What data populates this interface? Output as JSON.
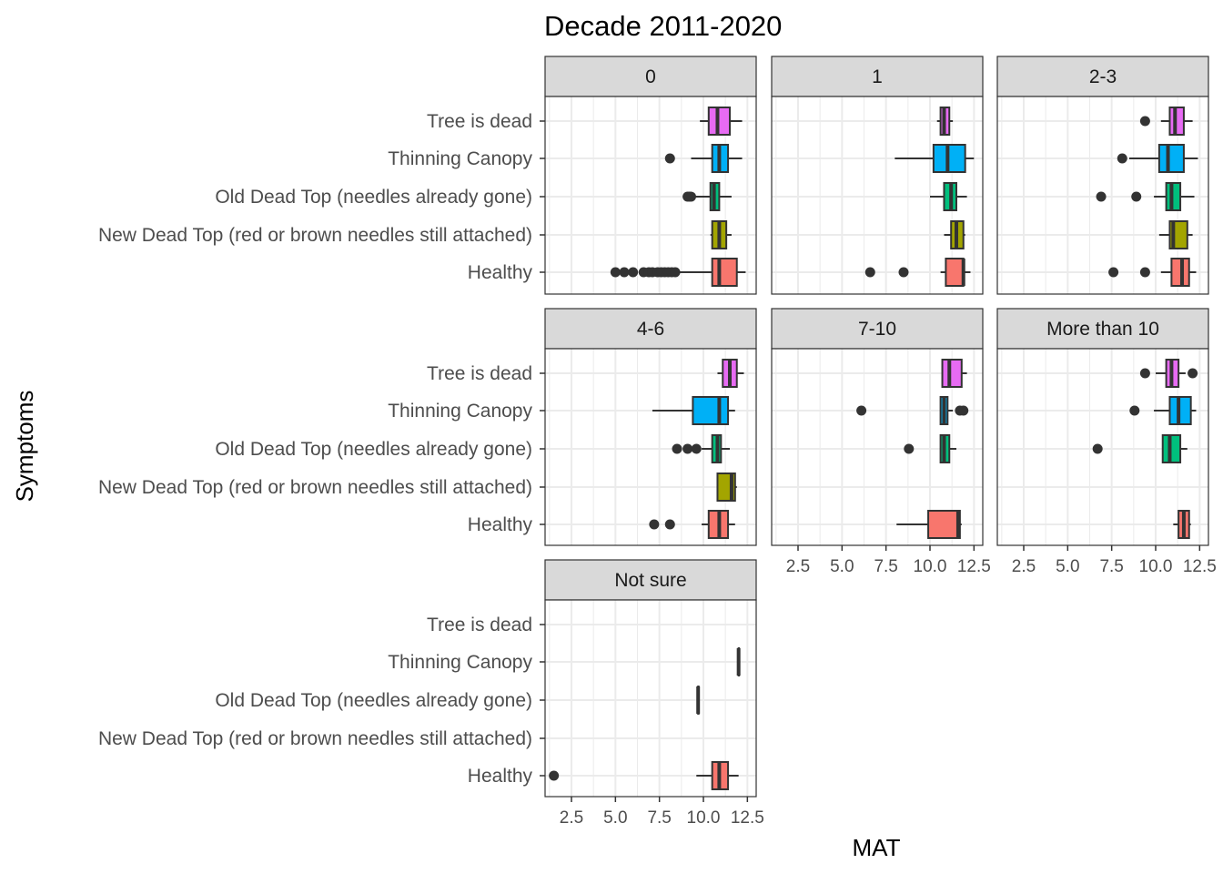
{
  "chart_data": {
    "type": "boxplot",
    "title": "Decade 2011-2020",
    "xlabel": "MAT",
    "ylabel": "Symptoms",
    "xlim": [
      1.0,
      13.0
    ],
    "x_ticks": [
      2.5,
      5.0,
      7.5,
      10.0,
      12.5
    ],
    "x_tick_labels": [
      "2.5",
      "5.0",
      "7.5",
      "10.0",
      "12.5"
    ],
    "categories": [
      "Tree is dead",
      "Thinning Canopy",
      "Old Dead Top (needles already gone)",
      "New Dead Top (red or brown needles still attached)",
      "Healthy"
    ],
    "category_colors": {
      "Tree is dead": "#E76BF3",
      "Thinning Canopy": "#00B0F6",
      "Old Dead Top (needles already gone)": "#00BF7D",
      "New Dead Top (red or brown needles still attached)": "#A3A500",
      "Healthy": "#F8766D"
    },
    "grid": true,
    "panels": [
      {
        "label": "0",
        "boxes": [
          {
            "category": "Tree is dead",
            "q1": 10.3,
            "median": 10.8,
            "q3": 11.5,
            "wmin": 9.8,
            "wmax": 12.2,
            "outliers": []
          },
          {
            "category": "Thinning Canopy",
            "q1": 10.5,
            "median": 10.9,
            "q3": 11.4,
            "wmin": 9.3,
            "wmax": 12.2,
            "outliers": [
              8.1
            ]
          },
          {
            "category": "Old Dead Top (needles already gone)",
            "q1": 10.4,
            "median": 10.6,
            "q3": 10.9,
            "wmin": 9.5,
            "wmax": 11.6,
            "outliers": [
              9.1,
              9.2,
              9.3
            ]
          },
          {
            "category": "New Dead Top (red or brown needles still attached)",
            "q1": 10.5,
            "median": 10.9,
            "q3": 11.3,
            "wmin": 10.4,
            "wmax": 11.6,
            "outliers": []
          },
          {
            "category": "Healthy",
            "q1": 10.5,
            "median": 10.9,
            "q3": 11.9,
            "wmin": 8.5,
            "wmax": 12.4,
            "outliers": [
              5.0,
              5.5,
              6.0,
              6.6,
              6.9,
              7.1,
              7.4,
              7.6,
              7.8,
              8.0,
              8.2,
              8.4
            ]
          }
        ]
      },
      {
        "label": "1",
        "boxes": [
          {
            "category": "Tree is dead",
            "q1": 10.6,
            "median": 10.8,
            "q3": 11.1,
            "wmin": 10.4,
            "wmax": 11.3,
            "outliers": []
          },
          {
            "category": "Thinning Canopy",
            "q1": 10.2,
            "median": 11.0,
            "q3": 12.0,
            "wmin": 8.0,
            "wmax": 12.5,
            "outliers": []
          },
          {
            "category": "Old Dead Top (needles already gone)",
            "q1": 10.8,
            "median": 11.2,
            "q3": 11.5,
            "wmin": 10.0,
            "wmax": 12.1,
            "outliers": []
          },
          {
            "category": "New Dead Top (red or brown needles still attached)",
            "q1": 11.2,
            "median": 11.5,
            "q3": 11.9,
            "wmin": 10.8,
            "wmax": 12.0,
            "outliers": []
          },
          {
            "category": "Healthy",
            "q1": 10.9,
            "median": 11.9,
            "q3": 11.9,
            "wmin": 10.6,
            "wmax": 12.3,
            "outliers": [
              6.6,
              8.5
            ]
          }
        ]
      },
      {
        "label": "2-3",
        "boxes": [
          {
            "category": "Tree is dead",
            "q1": 10.8,
            "median": 11.1,
            "q3": 11.6,
            "wmin": 10.3,
            "wmax": 12.1,
            "outliers": [
              9.4
            ]
          },
          {
            "category": "Thinning Canopy",
            "q1": 10.2,
            "median": 10.7,
            "q3": 11.6,
            "wmin": 8.5,
            "wmax": 12.4,
            "outliers": [
              8.1
            ]
          },
          {
            "category": "Old Dead Top (needles already gone)",
            "q1": 10.6,
            "median": 10.9,
            "q3": 11.4,
            "wmin": 9.9,
            "wmax": 12.2,
            "outliers": [
              6.9,
              8.9
            ]
          },
          {
            "category": "New Dead Top (red or brown needles still attached)",
            "q1": 10.8,
            "median": 11.0,
            "q3": 11.8,
            "wmin": 10.2,
            "wmax": 12.1,
            "outliers": []
          },
          {
            "category": "Healthy",
            "q1": 10.9,
            "median": 11.5,
            "q3": 11.9,
            "wmin": 10.3,
            "wmax": 12.3,
            "outliers": [
              7.6,
              9.4
            ]
          }
        ]
      },
      {
        "label": "4-6",
        "boxes": [
          {
            "category": "Tree is dead",
            "q1": 11.1,
            "median": 11.5,
            "q3": 11.9,
            "wmin": 10.8,
            "wmax": 12.3,
            "outliers": []
          },
          {
            "category": "Thinning Canopy",
            "q1": 9.4,
            "median": 10.9,
            "q3": 11.4,
            "wmin": 7.1,
            "wmax": 11.8,
            "outliers": []
          },
          {
            "category": "Old Dead Top (needles already gone)",
            "q1": 10.5,
            "median": 10.8,
            "q3": 11.0,
            "wmin": 9.9,
            "wmax": 11.5,
            "outliers": [
              8.5,
              9.1,
              9.6
            ]
          },
          {
            "category": "New Dead Top (red or brown needles still attached)",
            "q1": 10.8,
            "median": 11.6,
            "q3": 11.8,
            "wmin": 10.8,
            "wmax": 11.9,
            "outliers": []
          },
          {
            "category": "Healthy",
            "q1": 10.3,
            "median": 10.9,
            "q3": 11.4,
            "wmin": 9.9,
            "wmax": 11.8,
            "outliers": [
              7.2,
              8.1
            ]
          }
        ]
      },
      {
        "label": "7-10",
        "boxes": [
          {
            "category": "Tree is dead",
            "q1": 10.7,
            "median": 11.1,
            "q3": 11.8,
            "wmin": 10.7,
            "wmax": 12.1,
            "outliers": []
          },
          {
            "category": "Thinning Canopy",
            "q1": 10.6,
            "median": 10.8,
            "q3": 11.0,
            "wmin": 10.6,
            "wmax": 11.3,
            "outliers": [
              6.1,
              11.7,
              11.9
            ]
          },
          {
            "category": "Old Dead Top (needles already gone)",
            "q1": 10.6,
            "median": 10.8,
            "q3": 11.1,
            "wmin": 10.6,
            "wmax": 11.5,
            "outliers": [
              8.8
            ]
          },
          {
            "category": "Healthy",
            "q1": 9.9,
            "median": 11.6,
            "q3": 11.7,
            "wmin": 8.1,
            "wmax": 11.8,
            "outliers": []
          }
        ]
      },
      {
        "label": "More than 10",
        "boxes": [
          {
            "category": "Tree is dead",
            "q1": 10.6,
            "median": 10.9,
            "q3": 11.3,
            "wmin": 10.0,
            "wmax": 11.7,
            "outliers": [
              9.4,
              12.1
            ]
          },
          {
            "category": "Thinning Canopy",
            "q1": 10.8,
            "median": 11.3,
            "q3": 12.0,
            "wmin": 9.9,
            "wmax": 12.3,
            "outliers": [
              8.8
            ]
          },
          {
            "category": "Old Dead Top (needles already gone)",
            "q1": 10.4,
            "median": 10.8,
            "q3": 11.4,
            "wmin": 10.4,
            "wmax": 11.8,
            "outliers": [
              6.7
            ]
          },
          {
            "category": "Healthy",
            "q1": 11.3,
            "median": 11.6,
            "q3": 11.9,
            "wmin": 11.0,
            "wmax": 12.0,
            "outliers": []
          }
        ]
      },
      {
        "label": "Not sure",
        "boxes": [
          {
            "category": "Thinning Canopy",
            "q1": 12.0,
            "median": 12.0,
            "q3": 12.0,
            "wmin": 12.0,
            "wmax": 12.0,
            "outliers": []
          },
          {
            "category": "Old Dead Top (needles already gone)",
            "q1": 9.7,
            "median": 9.7,
            "q3": 9.7,
            "wmin": 9.7,
            "wmax": 9.7,
            "outliers": []
          },
          {
            "category": "Healthy",
            "q1": 10.5,
            "median": 10.9,
            "q3": 11.4,
            "wmin": 9.6,
            "wmax": 12.0,
            "outliers": [
              1.5
            ]
          }
        ]
      }
    ]
  }
}
